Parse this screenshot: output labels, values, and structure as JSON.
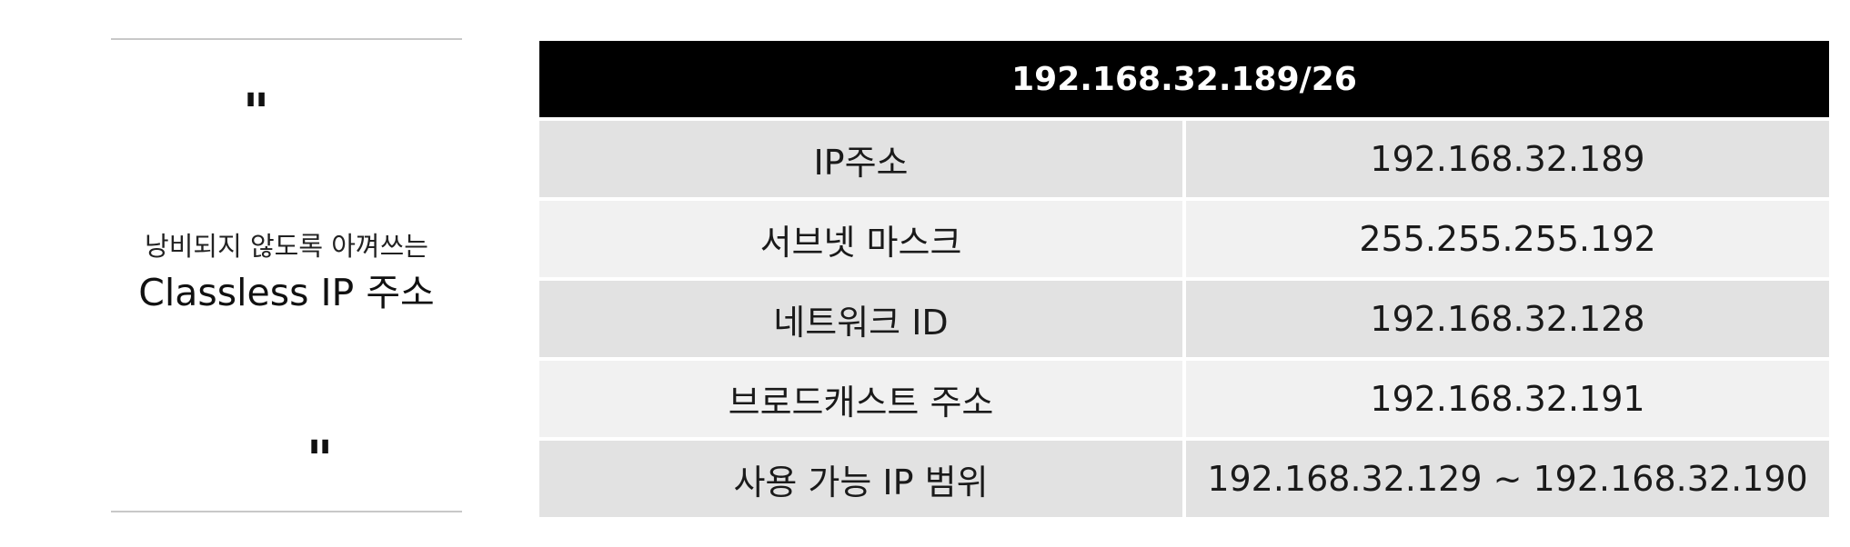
{
  "quote": {
    "open_mark": "\"",
    "close_mark": "\"",
    "subtitle": "낭비되지 않도록 아껴쓰는",
    "title": "Classless IP 주소"
  },
  "table": {
    "header": "192.168.32.189/26",
    "rows": [
      {
        "label": "IP주소",
        "value": "192.168.32.189"
      },
      {
        "label": "서브넷 마스크",
        "value": "255.255.255.192"
      },
      {
        "label": "네트워크 ID",
        "value": "192.168.32.128"
      },
      {
        "label": "브로드캐스트 주소",
        "value": "192.168.32.191"
      },
      {
        "label": "사용 가능 IP 범위",
        "value": "192.168.32.129 ~ 192.168.32.190"
      }
    ]
  },
  "colors": {
    "header_bg": "#000000",
    "row_dark": "#e2e2e2",
    "row_light": "#f1f1f1",
    "rule": "#c8c8c8"
  }
}
